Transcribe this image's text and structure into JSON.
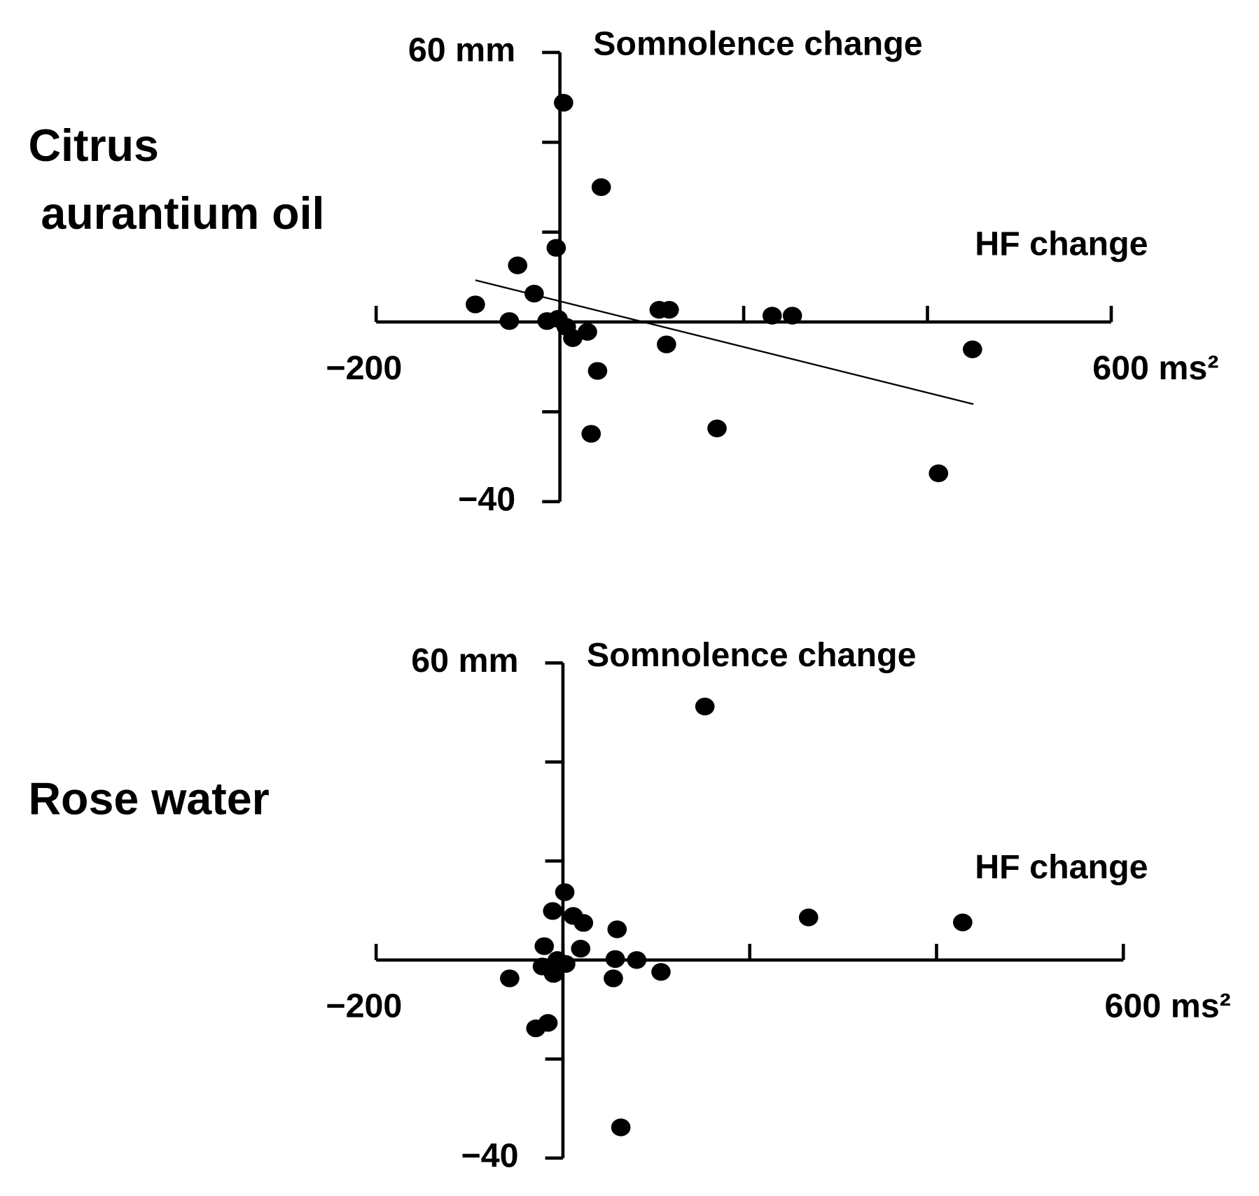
{
  "chart_data": [
    {
      "type": "scatter",
      "title": "Citrus aurantium oil",
      "x_label": "HF change",
      "y_label": "Somnolence change",
      "xlim": [
        -200,
        600
      ],
      "ylim": [
        -40,
        60
      ],
      "xticks": [
        {
          "value": -200,
          "label": "−200"
        },
        {
          "value": 0,
          "label": null
        },
        {
          "value": 200,
          "label": null
        },
        {
          "value": 400,
          "label": null
        },
        {
          "value": 600,
          "label": "600 ms²"
        }
      ],
      "yticks": [
        {
          "value": -40,
          "label": "−40"
        },
        {
          "value": -20,
          "label": null
        },
        {
          "value": 0,
          "label": null
        },
        {
          "value": 20,
          "label": null
        },
        {
          "value": 40,
          "label": null
        },
        {
          "value": 60,
          "label": "60 mm"
        }
      ],
      "series": [
        {
          "color": "#000000",
          "x": [
            4,
            45,
            -4,
            -46,
            -28,
            -92,
            -55,
            -14,
            -2,
            7,
            14,
            30,
            41,
            34,
            108,
            119,
            116,
            171,
            231,
            253,
            412,
            449
          ],
          "values": [
            48.8,
            30,
            16.5,
            12.6,
            6.3,
            3.9,
            0.2,
            0.2,
            0.7,
            -1.1,
            -3.6,
            -2.2,
            -10.9,
            -24.9,
            2.7,
            2.7,
            -5,
            -23.7,
            1.4,
            1.4,
            -33.7,
            -6.1
          ]
        }
      ],
      "trend_line": {
        "color": "#000000",
        "x": [
          -92,
          450
        ],
        "values": [
          9.3,
          -18.3
        ]
      }
    },
    {
      "type": "scatter",
      "title": "Rose water",
      "x_label": "HF change",
      "y_label": "Somnolence change",
      "xlim": [
        -200,
        600
      ],
      "ylim": [
        -40,
        60
      ],
      "xticks": [
        {
          "value": -200,
          "label": "−200"
        },
        {
          "value": 0,
          "label": null
        },
        {
          "value": 200,
          "label": null
        },
        {
          "value": 400,
          "label": null
        },
        {
          "value": 600,
          "label": "600 ms²"
        }
      ],
      "yticks": [
        {
          "value": -40,
          "label": "−40"
        },
        {
          "value": -20,
          "label": null
        },
        {
          "value": 0,
          "label": null
        },
        {
          "value": 20,
          "label": null
        },
        {
          "value": 40,
          "label": null
        },
        {
          "value": 60,
          "label": "60 mm"
        }
      ],
      "series": [
        {
          "color": "#000000",
          "x": [
            152,
            2,
            -11,
            11,
            22,
            58,
            263,
            428,
            -20,
            19,
            -6,
            3,
            -22,
            -10,
            56,
            79,
            54,
            105,
            -57,
            -29,
            -16,
            62
          ],
          "values": [
            51.2,
            13.7,
            9.9,
            8.9,
            7.5,
            6.2,
            8.6,
            7.6,
            2.8,
            2.3,
            0,
            -0.8,
            -1.3,
            -2.8,
            0.2,
            0,
            -3.7,
            -2.4,
            -3.7,
            -13.8,
            -12.7,
            -33.8
          ]
        }
      ]
    }
  ]
}
